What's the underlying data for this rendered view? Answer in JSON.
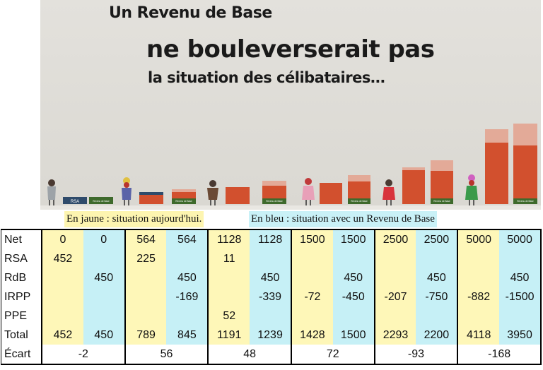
{
  "video": {
    "title_line1": "Un Revenu de Base",
    "title_line2": "ne bouleverserait pas",
    "title_line3": "la situation des célibataires…",
    "bar_labels": {
      "rsa": "RSA",
      "rdb": "Revenu de Base"
    },
    "colors": {
      "bar_base": "#d2502e",
      "bar_top": "#e3aa98",
      "rsa_block": "#2f4b6b",
      "rdb_block": "#3e6a2c",
      "background": "#dedcd6"
    }
  },
  "legend": {
    "yellow": "En jaune : situation aujourd'hui.",
    "blue": "En bleu : situation avec un Revenu de Base"
  },
  "table": {
    "row_labels": [
      "Net",
      "RSA",
      "RdB",
      "IRPP",
      "PPE",
      "Total"
    ],
    "ecart_label": "Écart",
    "groups": [
      {
        "net": [
          "0",
          "0"
        ],
        "rsa": [
          "452",
          ""
        ],
        "rdb": [
          "",
          "450"
        ],
        "irpp": [
          "",
          ""
        ],
        "ppe": [
          "",
          ""
        ],
        "total": [
          "452",
          "450"
        ],
        "ecart": "-2"
      },
      {
        "net": [
          "564",
          "564"
        ],
        "rsa": [
          "225",
          ""
        ],
        "rdb": [
          "",
          "450"
        ],
        "irpp": [
          "",
          "-169"
        ],
        "ppe": [
          "",
          ""
        ],
        "total": [
          "789",
          "845"
        ],
        "ecart": "56"
      },
      {
        "net": [
          "1128",
          "1128"
        ],
        "rsa": [
          "11",
          ""
        ],
        "rdb": [
          "",
          "450"
        ],
        "irpp": [
          "",
          "-339"
        ],
        "ppe": [
          "52",
          ""
        ],
        "total": [
          "1191",
          "1239"
        ],
        "ecart": "48"
      },
      {
        "net": [
          "1500",
          "1500"
        ],
        "rsa": [
          "",
          ""
        ],
        "rdb": [
          "",
          "450"
        ],
        "irpp": [
          "-72",
          "-450"
        ],
        "ppe": [
          "",
          ""
        ],
        "total": [
          "1428",
          "1500"
        ],
        "ecart": "72"
      },
      {
        "net": [
          "2500",
          "2500"
        ],
        "rsa": [
          "",
          ""
        ],
        "rdb": [
          "",
          "450"
        ],
        "irpp": [
          "-207",
          "-750"
        ],
        "ppe": [
          "",
          ""
        ],
        "total": [
          "2293",
          "2200"
        ],
        "ecart": "-93"
      },
      {
        "net": [
          "5000",
          "5000"
        ],
        "rsa": [
          "",
          ""
        ],
        "rdb": [
          "",
          "450"
        ],
        "irpp": [
          "-882",
          "-1500"
        ],
        "ppe": [
          "",
          ""
        ],
        "total": [
          "4118",
          "3950"
        ],
        "ecart": "-168"
      }
    ]
  }
}
